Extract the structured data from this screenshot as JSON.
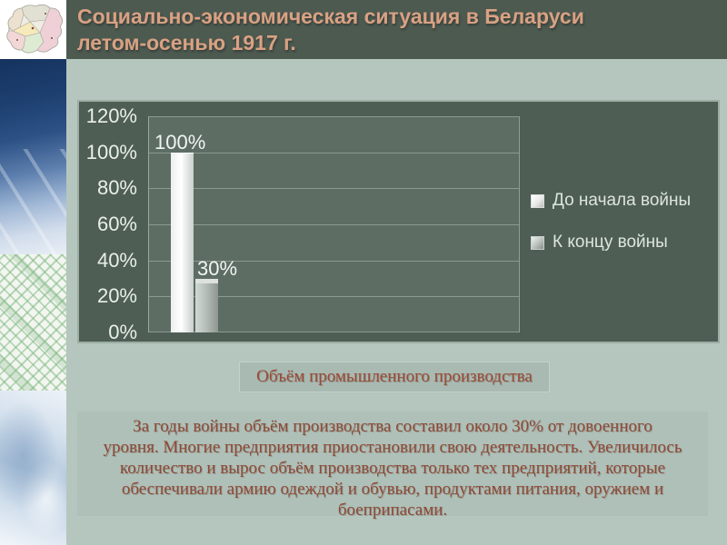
{
  "slide": {
    "title": "Социально-экономическая ситуация в Беларуси\nлетом-осенью 1917 г.",
    "caption_label": "Объём промышленного производства",
    "body_text": "За годы войны объём производства составил около 30% от довоенного\nуровня. Многие предприятия приостановили свою деятельность. Увеличилось\nколичество и вырос объём производства только тех предприятий, которые\nобеспечивали армию одеждой и обувью, продуктами питания, оружием и\nбоеприпасами."
  },
  "chart_data": {
    "type": "bar",
    "title": "",
    "categories": [
      "Объём промышленного производства"
    ],
    "series": [
      {
        "name": "До начала войны",
        "values": [
          100
        ],
        "label": "100%"
      },
      {
        "name": "К концу войны",
        "values": [
          30
        ],
        "label": "30%"
      }
    ],
    "yticks": [
      "120%",
      "100%",
      "80%",
      "60%",
      "40%",
      "20%",
      "0%"
    ],
    "ylim": [
      0,
      120
    ],
    "grid": true,
    "legend_position": "right",
    "bar_colors": [
      "#ffffff",
      "#a9b1ac"
    ]
  },
  "colors": {
    "header_bg": "#4c5a50",
    "title_text": "#d9a183",
    "slide_bg": "#b5c6be",
    "chart_bg": "#4e5e55",
    "plot_bg": "#5d6d64",
    "caption_text": "#9c4a36",
    "body_text": "#8e4936"
  }
}
